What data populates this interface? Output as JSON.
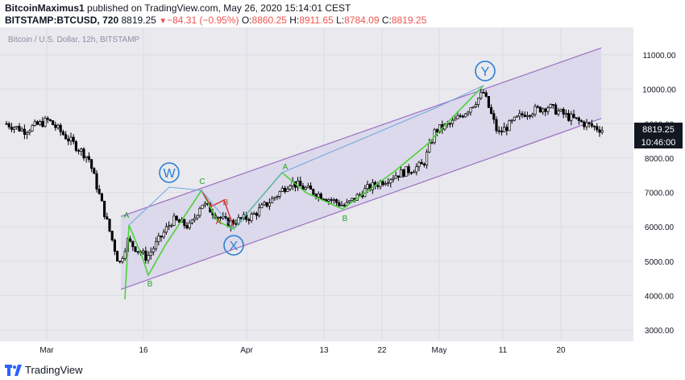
{
  "header": {
    "author": "BitcoinMaximus1",
    "published": "published on TradingView.com, May 26, 2020 15:14:01 CEST",
    "symbol": "BITSTAMP:BTCUSD, 720",
    "last": "8819.25",
    "change_arrow": "▼",
    "change": "−84.31 (−0.95%)",
    "o_label": "O:",
    "o_value": "8860.25",
    "h_label": "H:",
    "h_value": "8911.65",
    "l_label": "L:",
    "l_value": "8784.09",
    "c_label": "C:",
    "c_value": "8819.25"
  },
  "footer": {
    "brand": "TradingView"
  },
  "colors": {
    "up": "#000000",
    "down": "#000000",
    "channel": "#9c6fc2",
    "channel_fill": "#e3e1ef",
    "wave": "#4cd137",
    "wave_red": "#d63031",
    "wave_blue": "#6fa8dc",
    "price_label_bg": "#131722"
  },
  "chart_data": {
    "type": "candlestick",
    "title": "Bitcoin / U.S. Dollar, 12h, BITSTAMP",
    "x_ticks": [
      "Mar",
      "16",
      "Apr",
      "13",
      "22",
      "May",
      "11",
      "20"
    ],
    "y_ticks": [
      "3000.00",
      "4000.00",
      "5000.00",
      "6000.00",
      "7000.00",
      "8000.00",
      "9000.00",
      "10000.00",
      "11000.00"
    ],
    "ylim": [
      2700,
      11700
    ],
    "last_price_label": "8819.25",
    "countdown_label": "10:46:00",
    "close_path": [
      [
        "Mar",
        9000
      ],
      [
        "Mar 3",
        8800
      ],
      [
        "Mar 6",
        9100
      ],
      [
        "Mar 8",
        8000
      ],
      [
        "Mar 12",
        4900
      ],
      [
        "Mar 13",
        5600
      ],
      [
        "Mar 16",
        5100
      ],
      [
        "Mar 19",
        6200
      ],
      [
        "Mar 22",
        6000
      ],
      [
        "Mar 24",
        6700
      ],
      [
        "Mar 28",
        6100
      ],
      [
        "Apr 1",
        6300
      ],
      [
        "Apr 4",
        6800
      ],
      [
        "Apr 8",
        7300
      ],
      [
        "Apr 13",
        6900
      ],
      [
        "Apr 16",
        6600
      ],
      [
        "Apr 20",
        7100
      ],
      [
        "Apr 24",
        7500
      ],
      [
        "Apr 28",
        7800
      ],
      [
        "May 1",
        8800
      ],
      [
        "May 5",
        9000
      ],
      [
        "May 8",
        9400
      ],
      [
        "May 10",
        9900
      ],
      [
        "May 11",
        8700
      ],
      [
        "May 14",
        9300
      ],
      [
        "May 18",
        9500
      ],
      [
        "May 21",
        9200
      ],
      [
        "May 24",
        9000
      ],
      [
        "May 26",
        8819.25
      ]
    ],
    "annotations": {
      "waves": [
        "W",
        "X",
        "Y"
      ],
      "labels": [
        "A",
        "B",
        "C",
        "A",
        "B",
        "A",
        "B"
      ]
    }
  }
}
